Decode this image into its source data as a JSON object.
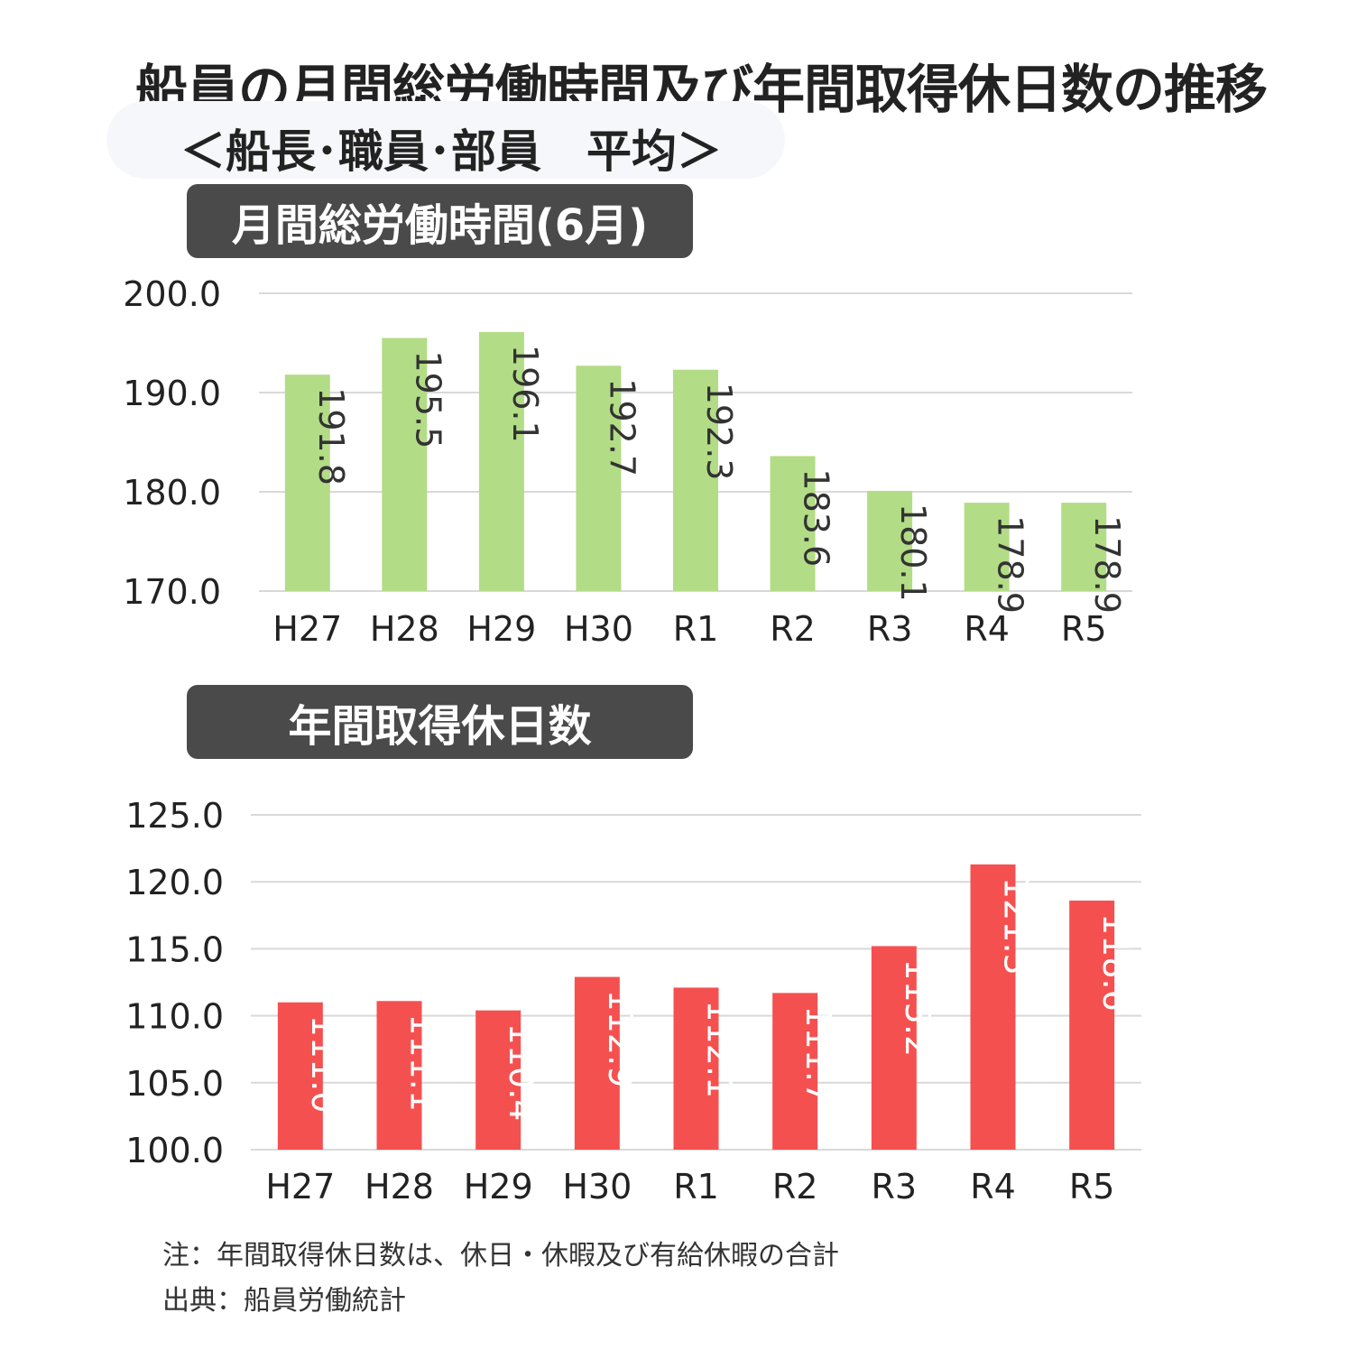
{
  "title": "船員の月間総労働時間及び年間取得休日数の推移",
  "subtitle": "＜船長･職員･部員　平均＞",
  "chart_data": [
    {
      "type": "bar",
      "title": "月間総労働時間(6月)",
      "categories": [
        "H27",
        "H28",
        "H29",
        "H30",
        "R1",
        "R2",
        "R3",
        "R4",
        "R5"
      ],
      "values": [
        191.8,
        195.5,
        196.1,
        192.7,
        192.3,
        183.6,
        180.1,
        178.9,
        178.9
      ],
      "value_labels": [
        "191.8",
        "195.5",
        "196.1",
        "192.7",
        "192.3",
        "183.6",
        "180.1",
        "178.9",
        "178.9"
      ],
      "ylim": [
        170,
        200
      ],
      "yticks": [
        "200.0",
        "190.0",
        "180.0",
        "170.0"
      ],
      "ytick_values": [
        200,
        190,
        180,
        170
      ],
      "color": "#b3dc86",
      "label_color": "#333333",
      "grid": true
    },
    {
      "type": "bar",
      "title": "年間取得休日数",
      "categories": [
        "H27",
        "H28",
        "H29",
        "H30",
        "R1",
        "R2",
        "R3",
        "R4",
        "R5"
      ],
      "values": [
        111.0,
        111.1,
        110.4,
        112.9,
        112.1,
        111.7,
        115.2,
        121.3,
        118.6
      ],
      "value_labels": [
        "111.0",
        "111.1",
        "110.4",
        "112.9",
        "112.1",
        "111.7",
        "115.2",
        "121.3",
        "118.6"
      ],
      "ylim": [
        100,
        125
      ],
      "yticks": [
        "125.0",
        "120.0",
        "115.0",
        "110.0",
        "105.0",
        "100.0"
      ],
      "ytick_values": [
        125,
        120,
        115,
        110,
        105,
        100
      ],
      "color": "#f55050",
      "label_color": "#ffffff",
      "grid": true
    }
  ],
  "notes": {
    "note": "注：年間取得休日数は、休日・休暇及び有給休暇の合計",
    "source": "出典：船員労働統計"
  }
}
